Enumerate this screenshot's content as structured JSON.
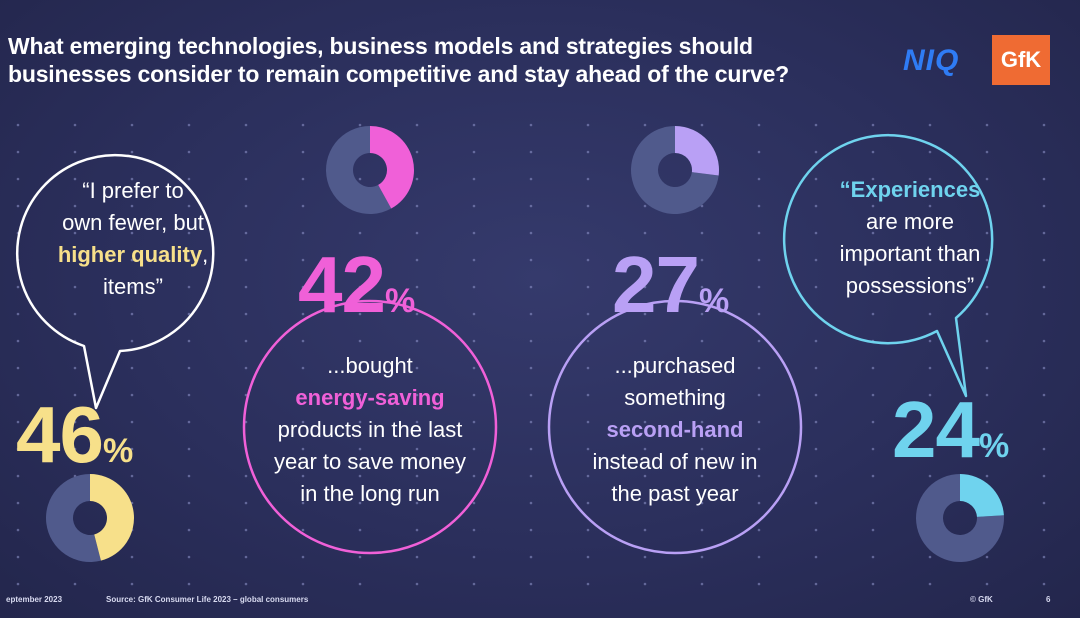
{
  "title": {
    "line1": "What emerging technologies, business models and strategies should",
    "line2": "businesses consider to remain competitive and stay ahead of the curve?"
  },
  "logos": {
    "niq": "NIQ",
    "gfk": "GfK"
  },
  "colors": {
    "background": "#2b2f5c",
    "yellow": "#f7e08a",
    "pink": "#f060d8",
    "violet": "#b9a0f5",
    "cyan": "#6fd3ee",
    "donut_remainder": "#505a8c"
  },
  "chart_data": [
    {
      "type": "pie",
      "value": 46,
      "unit": "%",
      "series": [
        {
          "name": "",
          "values": [
            46,
            54
          ]
        }
      ],
      "quote_parts": [
        "“I prefer to",
        "own fewer, but",
        "higher quality",
        ",",
        "items”"
      ]
    },
    {
      "type": "pie",
      "value": 42,
      "unit": "%",
      "series": [
        {
          "name": "",
          "values": [
            42,
            58
          ]
        }
      ],
      "text_parts": [
        "...bought",
        "energy-saving",
        "products in the last",
        "year to save money",
        "in the long run"
      ]
    },
    {
      "type": "pie",
      "value": 27,
      "unit": "%",
      "series": [
        {
          "name": "",
          "values": [
            27,
            73
          ]
        }
      ],
      "text_parts": [
        "...purchased",
        "something",
        "second-hand",
        "instead of new  in",
        "the past year"
      ]
    },
    {
      "type": "pie",
      "value": 24,
      "unit": "%",
      "series": [
        {
          "name": "",
          "values": [
            24,
            76
          ]
        }
      ],
      "quote_parts": [
        "“Experiences",
        "are more",
        "important than",
        "possessions”"
      ]
    }
  ],
  "footer": {
    "date": "eptember 2023",
    "source": "Source: GfK Consumer Life 2023 – global consumers",
    "copyright": "© GfK",
    "page": "6"
  }
}
